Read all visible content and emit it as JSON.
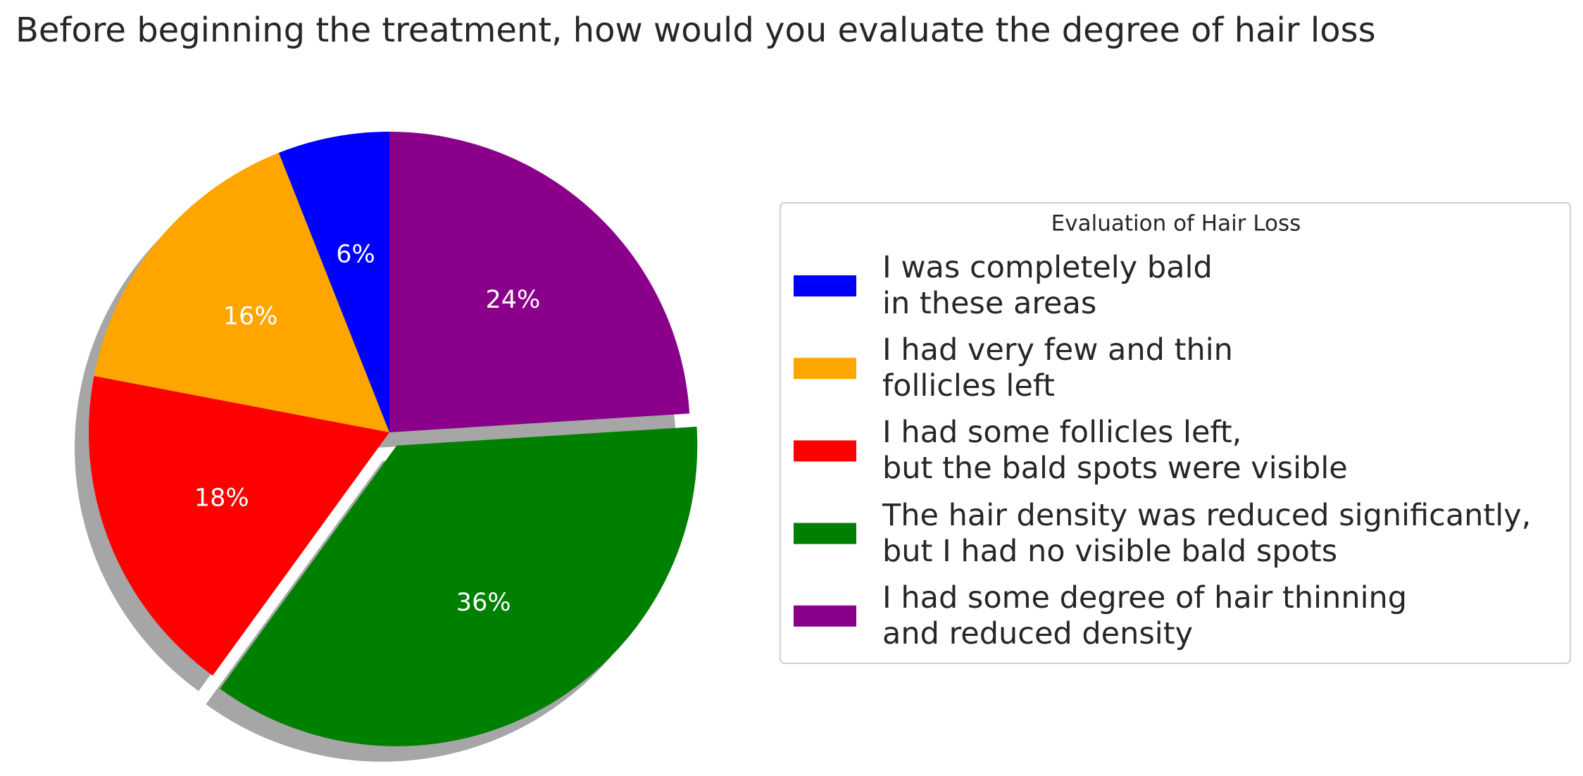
{
  "chart_data": {
    "type": "pie",
    "title": "Before beginning the treatment, how would you evaluate the degree of hair loss",
    "categories": [
      "I was completely bald\nin these areas",
      "I had very few and thin\nfollicles left",
      "I had some follicles left,\nbut the bald spots were visible",
      "The hair density was reduced significantly,\nbut I had no visible bald spots",
      "I had some degree of hair thinning\nand reduced density"
    ],
    "values": [
      6,
      16,
      18,
      36,
      24
    ],
    "value_labels": [
      "6%",
      "16%",
      "18%",
      "36%",
      "24%"
    ],
    "colors": [
      "#0000ff",
      "#ffa500",
      "#ff0000",
      "#008000",
      "#8b008b"
    ],
    "explode": [
      0,
      0,
      0,
      0.05,
      0
    ],
    "start_angle": 90,
    "shadow": true,
    "legend_title": "Evaluation of Hair Loss",
    "legend_position": "right"
  }
}
